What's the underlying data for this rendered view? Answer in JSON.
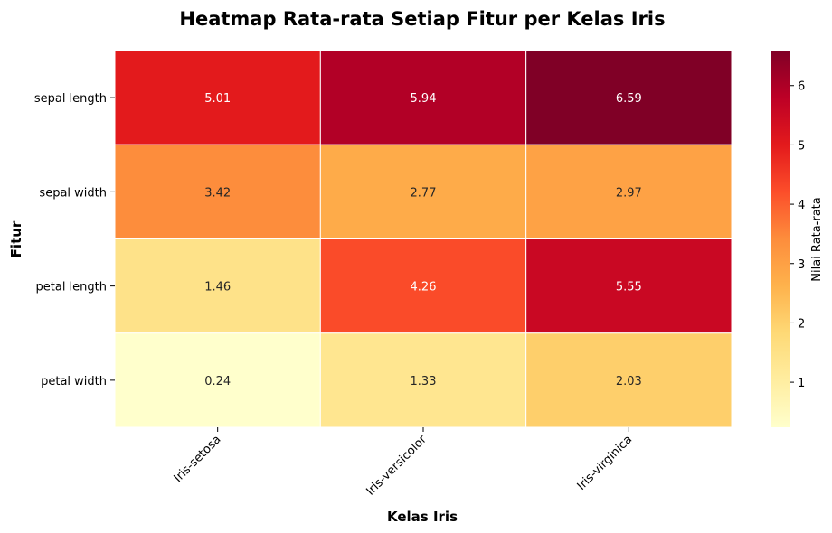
{
  "chart_data": {
    "type": "heatmap",
    "title": "Heatmap Rata-rata Setiap Fitur per Kelas Iris",
    "xlabel": "Kelas Iris",
    "ylabel": "Fitur",
    "x_categories": [
      "Iris-setosa",
      "Iris-versicolor",
      "Iris-virginica"
    ],
    "y_categories": [
      "sepal length",
      "sepal width",
      "petal length",
      "petal width"
    ],
    "values": [
      [
        5.01,
        5.94,
        6.59
      ],
      [
        3.42,
        2.77,
        2.97
      ],
      [
        1.46,
        4.26,
        5.55
      ],
      [
        0.24,
        1.33,
        2.03
      ]
    ],
    "value_labels": [
      [
        "5.01",
        "5.94",
        "6.59"
      ],
      [
        "3.42",
        "2.77",
        "2.97"
      ],
      [
        "1.46",
        "4.26",
        "5.55"
      ],
      [
        "0.24",
        "1.33",
        "2.03"
      ]
    ],
    "colormap": "YlOrRd",
    "vmin": 0.24,
    "vmax": 6.59,
    "colorbar": {
      "label": "Nilai Rata-rata",
      "ticks": [
        1,
        2,
        3,
        4,
        5,
        6
      ],
      "tick_labels": [
        "1",
        "2",
        "3",
        "4",
        "5",
        "6"
      ]
    }
  }
}
